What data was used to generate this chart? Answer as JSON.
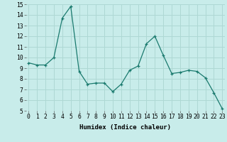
{
  "x": [
    0,
    1,
    2,
    3,
    4,
    5,
    6,
    7,
    8,
    9,
    10,
    11,
    12,
    13,
    14,
    15,
    16,
    17,
    18,
    19,
    20,
    21,
    22,
    23
  ],
  "y": [
    9.5,
    9.3,
    9.3,
    10.0,
    13.7,
    14.8,
    8.7,
    7.5,
    7.6,
    7.6,
    6.8,
    7.5,
    8.8,
    9.2,
    11.3,
    12.0,
    10.2,
    8.5,
    8.6,
    8.8,
    8.7,
    8.1,
    6.7,
    5.2
  ],
  "xlabel": "Humidex (Indice chaleur)",
  "ylabel": "",
  "ylim": [
    5,
    15
  ],
  "xlim": [
    -0.3,
    23.3
  ],
  "line_color": "#1a7a6e",
  "marker": "+",
  "bg_color": "#c8ecea",
  "grid_color": "#aed8d4",
  "label_fontsize": 6.5,
  "tick_fontsize": 5.8
}
